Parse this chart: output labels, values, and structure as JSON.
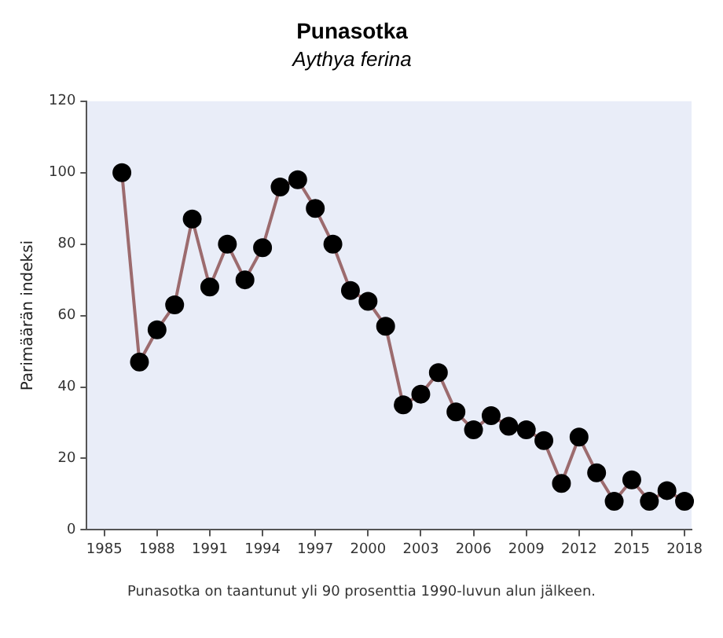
{
  "chart_data": {
    "type": "line",
    "title": "Punasotka",
    "subtitle": "Aythya ferina",
    "ylabel": "Parimäärän indeksi",
    "x": [
      1986,
      1987,
      1988,
      1989,
      1990,
      1991,
      1992,
      1993,
      1994,
      1995,
      1996,
      1997,
      1998,
      1999,
      2000,
      2001,
      2002,
      2003,
      2004,
      2005,
      2006,
      2007,
      2008,
      2009,
      2010,
      2011,
      2012,
      2013,
      2014,
      2015,
      2016,
      2017,
      2018
    ],
    "series": [
      {
        "color": "#9c6b6e",
        "values": [
          100,
          47,
          56,
          63,
          87,
          68,
          80,
          70,
          79,
          96,
          98,
          90,
          80,
          67,
          64,
          57,
          35,
          38,
          44,
          33,
          28,
          32,
          29,
          28,
          25,
          13,
          26,
          16,
          8,
          14,
          8,
          11,
          8
        ]
      }
    ],
    "xlim": [
      1984,
      2018.4
    ],
    "xticks": [
      1985,
      1988,
      1991,
      1994,
      1997,
      2000,
      2003,
      2006,
      2009,
      2012,
      2015,
      2018
    ],
    "ylim": [
      0,
      120
    ],
    "yticks": [
      0,
      20,
      40,
      60,
      80,
      100,
      120
    ],
    "grid": false,
    "legend": false,
    "marker": "circle",
    "line_style": "solid",
    "annotations": [
      "Punasotka on taantunut yli 90 prosenttia 1990-luvun alun jälkeen."
    ]
  }
}
